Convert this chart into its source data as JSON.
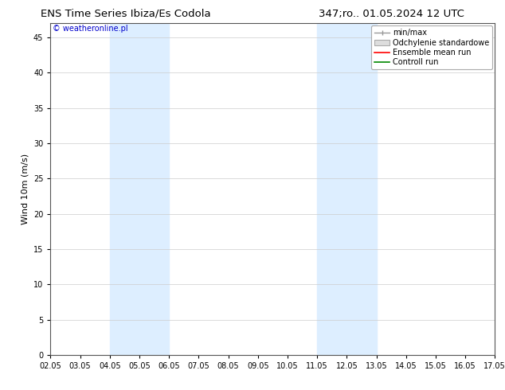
{
  "title_left": "ENS Time Series Ibiza/Es Codola",
  "title_right": "347;ro.. 01.05.2024 12 UTC",
  "ylabel": "Wind 10m (m/s)",
  "watermark": "© weatheronline.pl",
  "watermark_color": "#0000cc",
  "background_color": "#ffffff",
  "plot_bg_color": "#ffffff",
  "ylim": [
    0,
    47
  ],
  "yticks": [
    0,
    5,
    10,
    15,
    20,
    25,
    30,
    35,
    40,
    45
  ],
  "xtick_labels": [
    "02.05",
    "03.05",
    "04.05",
    "05.05",
    "06.05",
    "07.05",
    "08.05",
    "09.05",
    "10.05",
    "11.05",
    "12.05",
    "13.05",
    "14.05",
    "15.05",
    "16.05",
    "17.05"
  ],
  "shaded_bands": [
    {
      "xstart": 4.0,
      "xend": 6.0,
      "color": "#ddeeff"
    },
    {
      "xstart": 11.0,
      "xend": 13.0,
      "color": "#ddeeff"
    }
  ],
  "legend_entries": [
    {
      "label": "min/max",
      "color": "#aaaaaa",
      "type": "errorbar"
    },
    {
      "label": "Odchylenie standardowe",
      "color": "#cccccc",
      "type": "fill"
    },
    {
      "label": "Ensemble mean run",
      "color": "#ff0000",
      "type": "line"
    },
    {
      "label": "Controll run",
      "color": "#008800",
      "type": "line"
    }
  ],
  "title_fontsize": 9.5,
  "axis_label_fontsize": 8,
  "tick_fontsize": 7,
  "watermark_fontsize": 7,
  "legend_fontsize": 7
}
